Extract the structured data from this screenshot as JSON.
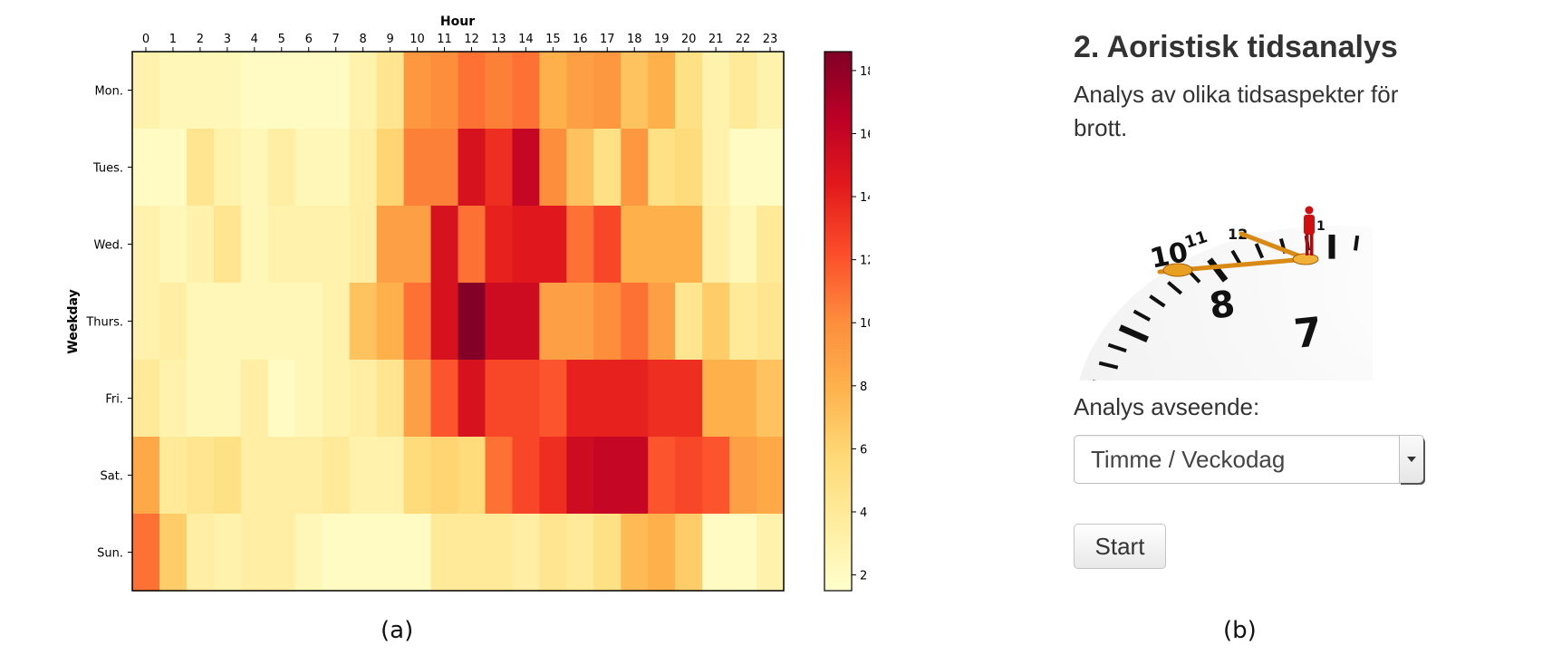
{
  "captions": {
    "a": "(a)",
    "b": "(b)"
  },
  "panel": {
    "title": "2. Aoristisk tidsanalys",
    "description": "Analys av olika tidsaspekter för brott.",
    "clock_image": {
      "numbers": [
        "1",
        "10",
        "11",
        "12",
        "8",
        "7"
      ]
    },
    "analysis_label": "Analys avseende:",
    "select_value": "Timme / Veckodag",
    "start_button": "Start"
  },
  "chart_data": {
    "type": "heatmap",
    "xlabel": "Hour",
    "ylabel": "Weekday",
    "x": [
      "0",
      "1",
      "2",
      "3",
      "4",
      "5",
      "6",
      "7",
      "8",
      "9",
      "10",
      "11",
      "12",
      "13",
      "14",
      "15",
      "16",
      "17",
      "18",
      "19",
      "20",
      "21",
      "22",
      "23"
    ],
    "y": [
      "Mon.",
      "Tues.",
      "Wed.",
      "Thurs.",
      "Fri.",
      "Sat.",
      "Sun."
    ],
    "values": [
      [
        3,
        2.5,
        2.5,
        2.5,
        2,
        2,
        2,
        2,
        3,
        4.5,
        9.5,
        10,
        11,
        10.5,
        11,
        8,
        9,
        9.5,
        7,
        8,
        5,
        3,
        4,
        3
      ],
      [
        2,
        2,
        4.5,
        3,
        2.5,
        3.5,
        2.5,
        2.5,
        3.5,
        6,
        10.5,
        10.5,
        15,
        13.5,
        16,
        10,
        7,
        5,
        9.5,
        5,
        5.5,
        3,
        2,
        2
      ],
      [
        3,
        2.5,
        3,
        4.5,
        2.5,
        3,
        3,
        3,
        3.5,
        9,
        9,
        15,
        11,
        14,
        14.5,
        14.5,
        11,
        12.5,
        8,
        8,
        8,
        3.5,
        2.5,
        4
      ],
      [
        3,
        3.5,
        2.5,
        2.5,
        2.5,
        2.5,
        2.5,
        3,
        7,
        8,
        11,
        15,
        18.5,
        15.5,
        15.5,
        9,
        9,
        10,
        11,
        9,
        4.5,
        6.5,
        4,
        4.5
      ],
      [
        4,
        3,
        2.5,
        2.5,
        3.5,
        2,
        2.5,
        3,
        3.5,
        4.5,
        9,
        12,
        15,
        12.5,
        12.5,
        12,
        14,
        14,
        14,
        13.5,
        13.5,
        8,
        8,
        7
      ],
      [
        8.5,
        4,
        4.5,
        5,
        3.5,
        3.5,
        3.5,
        4,
        3,
        3,
        5.5,
        6,
        5.5,
        11,
        12.5,
        13.5,
        15.5,
        16,
        16,
        12,
        12.5,
        12,
        9,
        8.5
      ],
      [
        11,
        6.5,
        3.5,
        3,
        3.5,
        3.5,
        2.5,
        2,
        2,
        2,
        2,
        4,
        4,
        4,
        3.5,
        4.5,
        4,
        5,
        7.5,
        8,
        6.5,
        2,
        2,
        3
      ]
    ],
    "colorbar": {
      "min": 1.5,
      "max": 18.6,
      "ticks": [
        2,
        4,
        6,
        8,
        10,
        12,
        14,
        16,
        18
      ],
      "colormap": "YlOrRd"
    }
  }
}
